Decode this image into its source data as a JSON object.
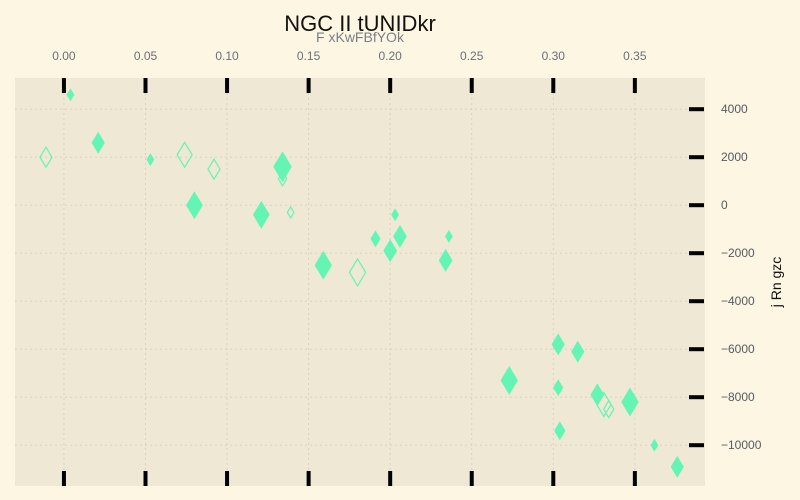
{
  "colors": {
    "page_bg": "#fdf6e3",
    "plot_bg": "#eee8d5",
    "grid": "#d9d2c0",
    "marker": "#64f5b4",
    "tick_mark": "#000000"
  },
  "chart_data": {
    "type": "scatter",
    "title": "NGC II tUNIDkr",
    "xlabel": "F xKwFBfYOk",
    "ylabel": "j Rn gzc",
    "x_axis_position": "top",
    "y_axis_position": "right",
    "grid": true,
    "grid_style": "dotted",
    "marker": "diamond",
    "xlim": [
      -0.03,
      0.393
    ],
    "ylim": [
      -11700,
      5300
    ],
    "x_ticks": [
      0.0,
      0.05,
      0.1,
      0.15,
      0.2,
      0.25,
      0.3,
      0.35
    ],
    "x_tick_labels": [
      "0.00",
      "0.05",
      "0.10",
      "0.15",
      "0.20",
      "0.25",
      "0.30",
      "0.35"
    ],
    "y_ticks": [
      4000,
      2000,
      0,
      -2000,
      -4000,
      -6000,
      -8000,
      -10000
    ],
    "y_tick_labels": [
      "4000",
      "2000",
      "0",
      "−2000",
      "−4000",
      "−6000",
      "−8000",
      "−10000"
    ],
    "points": [
      {
        "x": 0.004,
        "y": 4600,
        "size": 0.55,
        "filled": true
      },
      {
        "x": 0.021,
        "y": 2600,
        "size": 1.0,
        "filled": true
      },
      {
        "x": -0.011,
        "y": 2000,
        "size": 1.0,
        "filled": false
      },
      {
        "x": 0.053,
        "y": 1900,
        "size": 0.55,
        "filled": true
      },
      {
        "x": 0.074,
        "y": 2100,
        "size": 1.25,
        "filled": false
      },
      {
        "x": 0.092,
        "y": 1500,
        "size": 1.0,
        "filled": false
      },
      {
        "x": 0.134,
        "y": 1600,
        "size": 1.45,
        "filled": true
      },
      {
        "x": 0.134,
        "y": 1100,
        "size": 0.7,
        "filled": false
      },
      {
        "x": 0.08,
        "y": 0,
        "size": 1.3,
        "filled": true
      },
      {
        "x": 0.121,
        "y": -400,
        "size": 1.3,
        "filled": true
      },
      {
        "x": 0.139,
        "y": -300,
        "size": 0.55,
        "filled": false
      },
      {
        "x": 0.203,
        "y": -400,
        "size": 0.55,
        "filled": true
      },
      {
        "x": 0.206,
        "y": -1300,
        "size": 1.05,
        "filled": true
      },
      {
        "x": 0.191,
        "y": -1400,
        "size": 0.75,
        "filled": true
      },
      {
        "x": 0.236,
        "y": -1300,
        "size": 0.55,
        "filled": true
      },
      {
        "x": 0.2,
        "y": -1900,
        "size": 1.05,
        "filled": true
      },
      {
        "x": 0.159,
        "y": -2500,
        "size": 1.35,
        "filled": true
      },
      {
        "x": 0.18,
        "y": -2800,
        "size": 1.35,
        "filled": false
      },
      {
        "x": 0.234,
        "y": -2300,
        "size": 1.05,
        "filled": true
      },
      {
        "x": 0.303,
        "y": -5800,
        "size": 1.0,
        "filled": true
      },
      {
        "x": 0.315,
        "y": -6100,
        "size": 1.0,
        "filled": true
      },
      {
        "x": 0.273,
        "y": -7300,
        "size": 1.35,
        "filled": true
      },
      {
        "x": 0.303,
        "y": -7600,
        "size": 0.75,
        "filled": true
      },
      {
        "x": 0.327,
        "y": -7900,
        "size": 1.05,
        "filled": true
      },
      {
        "x": 0.331,
        "y": -8300,
        "size": 1.2,
        "filled": false
      },
      {
        "x": 0.334,
        "y": -8500,
        "size": 0.85,
        "filled": false
      },
      {
        "x": 0.347,
        "y": -8200,
        "size": 1.35,
        "filled": true
      },
      {
        "x": 0.304,
        "y": -9400,
        "size": 0.85,
        "filled": true
      },
      {
        "x": 0.362,
        "y": -10000,
        "size": 0.55,
        "filled": true
      },
      {
        "x": 0.376,
        "y": -10900,
        "size": 1.0,
        "filled": true
      }
    ]
  }
}
